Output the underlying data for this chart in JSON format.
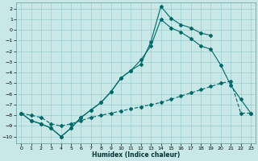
{
  "xlabel": "Humidex (Indice chaleur)",
  "background_color": "#c8e8e8",
  "grid_color": "#99cccc",
  "line_color": "#006868",
  "xlim": [
    -0.5,
    23.5
  ],
  "ylim": [
    -10.6,
    2.6
  ],
  "xticks": [
    0,
    1,
    2,
    3,
    4,
    5,
    6,
    7,
    8,
    9,
    10,
    11,
    12,
    13,
    14,
    15,
    16,
    17,
    18,
    19,
    20,
    21,
    22,
    23
  ],
  "yticks": [
    2,
    1,
    0,
    -1,
    -2,
    -3,
    -4,
    -5,
    -6,
    -7,
    -8,
    -9,
    -10
  ],
  "line1_x": [
    0,
    1,
    2,
    3,
    4,
    5,
    6,
    7,
    8,
    9,
    10,
    11,
    12,
    13,
    14,
    15,
    16,
    17,
    18,
    19
  ],
  "line1_y": [
    -7.8,
    -8.5,
    -8.8,
    -9.2,
    -10.0,
    -9.2,
    -8.2,
    -7.5,
    -6.8,
    -5.8,
    -4.5,
    -3.8,
    -3.2,
    -1.1,
    2.2,
    1.1,
    0.5,
    0.2,
    -0.3,
    -0.5
  ],
  "line2_x": [
    0,
    1,
    2,
    3,
    4,
    5,
    6,
    7,
    8,
    9,
    10,
    11,
    12,
    13,
    14,
    15,
    16,
    17,
    18,
    19,
    20,
    21,
    22,
    23
  ],
  "line2_y": [
    -7.8,
    -8.5,
    -8.8,
    -9.2,
    -10.0,
    -9.2,
    -8.2,
    -7.5,
    -6.8,
    -5.8,
    -4.5,
    -3.8,
    -2.8,
    -1.5,
    1.0,
    0.2,
    -0.2,
    -0.8,
    -1.5,
    -1.8,
    -3.3,
    -5.2,
    -6.5,
    -7.8
  ],
  "line3_x": [
    0,
    1,
    2,
    3,
    4,
    5,
    6,
    7,
    8,
    9,
    10,
    11,
    12,
    13,
    14,
    15,
    16,
    17,
    18,
    19,
    20,
    21,
    22,
    23
  ],
  "line3_y": [
    -7.8,
    -8.0,
    -8.2,
    -8.8,
    -9.0,
    -8.8,
    -8.5,
    -8.2,
    -8.0,
    -7.8,
    -7.6,
    -7.4,
    -7.2,
    -7.0,
    -6.8,
    -6.5,
    -6.2,
    -5.9,
    -5.6,
    -5.3,
    -5.0,
    -4.8,
    -7.8,
    -7.8
  ]
}
